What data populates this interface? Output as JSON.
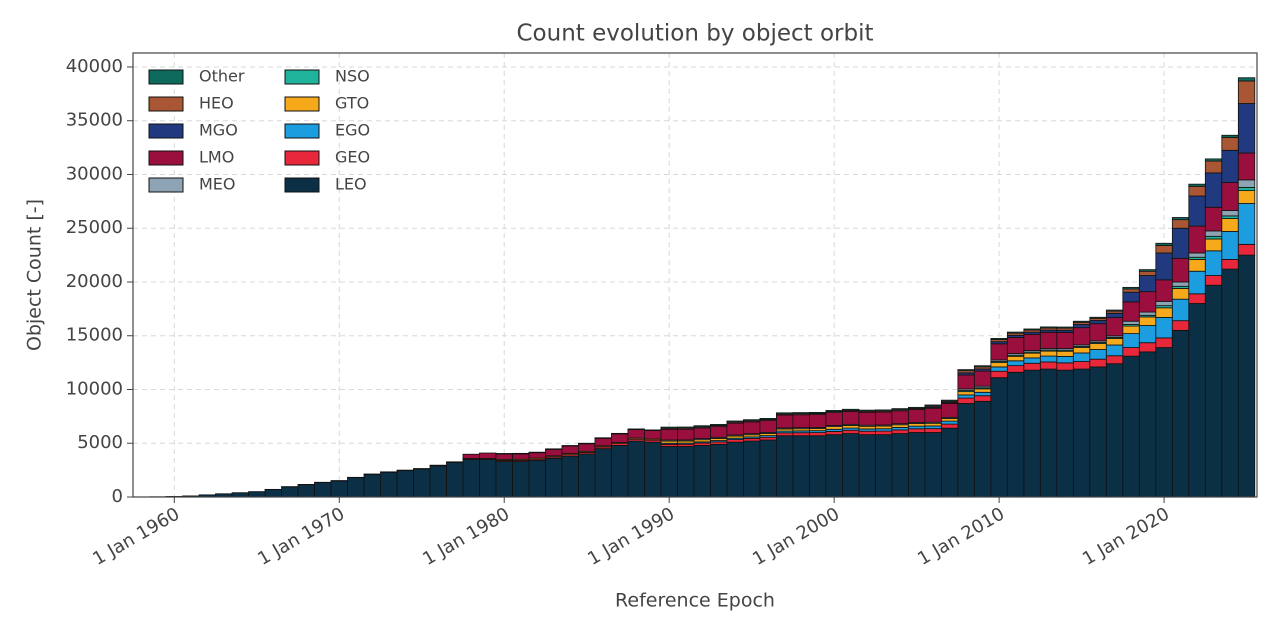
{
  "chart_data": {
    "type": "stacked_bar",
    "title": "Count evolution by object orbit",
    "xlabel": "Reference Epoch",
    "ylabel": "Object Count [-]",
    "x": [
      "1958-01-01",
      "1959-01-01",
      "1960-01-01",
      "1961-01-01",
      "1962-01-01",
      "1963-01-01",
      "1964-01-01",
      "1965-01-01",
      "1966-01-01",
      "1967-01-01",
      "1968-01-01",
      "1969-01-01",
      "1970-01-01",
      "1971-01-01",
      "1972-01-01",
      "1973-01-01",
      "1974-01-01",
      "1975-01-01",
      "1976-01-01",
      "1977-01-01",
      "1978-01-01",
      "1979-01-01",
      "1980-01-01",
      "1981-01-01",
      "1982-01-01",
      "1983-01-01",
      "1984-01-01",
      "1985-01-01",
      "1986-01-01",
      "1987-01-01",
      "1988-01-01",
      "1989-01-01",
      "1990-01-01",
      "1991-01-01",
      "1992-01-01",
      "1993-01-01",
      "1994-01-01",
      "1995-01-01",
      "1996-01-01",
      "1997-01-01",
      "1998-01-01",
      "1999-01-01",
      "2000-01-01",
      "2001-01-01",
      "2002-01-01",
      "2003-01-01",
      "2004-01-01",
      "2005-01-01",
      "2006-01-01",
      "2007-01-01",
      "2008-01-01",
      "2009-01-01",
      "2010-01-01",
      "2011-01-01",
      "2012-01-01",
      "2013-01-01",
      "2014-01-01",
      "2015-01-01",
      "2016-01-01",
      "2017-01-01",
      "2018-01-01",
      "2019-01-01",
      "2020-01-01",
      "2021-01-01",
      "2022-01-01",
      "2023-01-01",
      "2024-01-01",
      "2025-01-01"
    ],
    "series": [
      {
        "name": "LEO",
        "color": "#0b2f45",
        "values": [
          10,
          20,
          50,
          100,
          200,
          300,
          400,
          500,
          700,
          950,
          1150,
          1350,
          1500,
          1800,
          2100,
          2300,
          2450,
          2600,
          2900,
          3200,
          3500,
          3500,
          3300,
          3300,
          3400,
          3600,
          3800,
          4000,
          4500,
          4800,
          5200,
          5100,
          4700,
          4700,
          4800,
          4900,
          5100,
          5200,
          5300,
          5700,
          5700,
          5700,
          5800,
          5900,
          5800,
          5800,
          5900,
          6000,
          6000,
          6400,
          8700,
          8900,
          11100,
          11600,
          11800,
          11900,
          11800,
          11900,
          12100,
          12400,
          13100,
          13500,
          13900,
          15500,
          18000,
          19700,
          21200,
          22500
        ]
      },
      {
        "name": "GEO",
        "color": "#e8283a",
        "values": [
          0,
          0,
          0,
          0,
          0,
          0,
          0,
          0,
          10,
          10,
          20,
          20,
          30,
          30,
          40,
          40,
          50,
          50,
          60,
          70,
          80,
          90,
          100,
          110,
          120,
          130,
          140,
          150,
          160,
          170,
          180,
          190,
          200,
          210,
          220,
          230,
          240,
          250,
          260,
          270,
          280,
          290,
          300,
          310,
          320,
          330,
          340,
          350,
          360,
          380,
          500,
          520,
          600,
          620,
          640,
          660,
          680,
          700,
          720,
          740,
          800,
          850,
          900,
          900,
          900,
          900,
          900,
          1000
        ]
      },
      {
        "name": "EGO",
        "color": "#1b9de0",
        "values": [
          0,
          0,
          0,
          0,
          0,
          0,
          0,
          0,
          0,
          0,
          0,
          0,
          0,
          0,
          0,
          0,
          0,
          0,
          0,
          0,
          0,
          0,
          0,
          0,
          0,
          0,
          0,
          0,
          0,
          0,
          0,
          0,
          100,
          100,
          110,
          120,
          130,
          140,
          150,
          160,
          170,
          180,
          200,
          200,
          210,
          220,
          230,
          240,
          250,
          280,
          300,
          320,
          400,
          450,
          500,
          550,
          600,
          800,
          900,
          1000,
          1300,
          1600,
          1900,
          2000,
          2100,
          2300,
          2600,
          3800
        ]
      },
      {
        "name": "GTO",
        "color": "#f5a91b",
        "values": [
          0,
          0,
          0,
          0,
          0,
          0,
          0,
          0,
          0,
          0,
          0,
          0,
          0,
          0,
          0,
          0,
          0,
          0,
          0,
          0,
          0,
          0,
          100,
          100,
          100,
          100,
          100,
          100,
          100,
          100,
          100,
          100,
          200,
          200,
          200,
          200,
          200,
          200,
          200,
          200,
          200,
          200,
          250,
          250,
          250,
          250,
          250,
          250,
          250,
          250,
          300,
          320,
          400,
          420,
          440,
          460,
          480,
          500,
          550,
          600,
          700,
          800,
          900,
          1000,
          1100,
          1100,
          1200,
          1200
        ]
      },
      {
        "name": "NSO",
        "color": "#1fb39b",
        "values": [
          0,
          0,
          0,
          0,
          0,
          0,
          0,
          0,
          0,
          0,
          0,
          0,
          0,
          0,
          0,
          0,
          0,
          0,
          0,
          0,
          0,
          0,
          0,
          0,
          0,
          0,
          0,
          0,
          0,
          0,
          0,
          0,
          0,
          0,
          0,
          0,
          0,
          0,
          0,
          0,
          0,
          0,
          0,
          0,
          0,
          0,
          0,
          0,
          0,
          0,
          100,
          100,
          100,
          100,
          100,
          100,
          100,
          100,
          100,
          100,
          150,
          150,
          200,
          200,
          200,
          250,
          250,
          300
        ]
      },
      {
        "name": "MEO",
        "color": "#8ea3b3",
        "values": [
          0,
          0,
          0,
          0,
          0,
          0,
          0,
          0,
          0,
          0,
          0,
          0,
          0,
          0,
          0,
          0,
          0,
          0,
          0,
          0,
          0,
          0,
          0,
          0,
          0,
          0,
          0,
          0,
          0,
          0,
          0,
          0,
          100,
          100,
          100,
          100,
          100,
          100,
          100,
          100,
          100,
          100,
          100,
          100,
          100,
          100,
          100,
          100,
          100,
          100,
          150,
          150,
          150,
          150,
          150,
          150,
          150,
          150,
          150,
          150,
          300,
          300,
          400,
          400,
          400,
          500,
          500,
          700
        ]
      },
      {
        "name": "LMO",
        "color": "#9b0f3f",
        "values": [
          0,
          0,
          0,
          0,
          0,
          0,
          0,
          0,
          0,
          0,
          0,
          0,
          0,
          0,
          0,
          0,
          0,
          0,
          0,
          0,
          400,
          500,
          500,
          500,
          500,
          600,
          700,
          700,
          700,
          800,
          800,
          800,
          1000,
          1000,
          1000,
          1000,
          1100,
          1100,
          1100,
          1200,
          1200,
          1200,
          1200,
          1200,
          1200,
          1200,
          1200,
          1200,
          1300,
          1300,
          1300,
          1400,
          1500,
          1500,
          1500,
          1500,
          1500,
          1600,
          1600,
          1700,
          1800,
          1900,
          2000,
          2200,
          2500,
          2200,
          2600,
          2500
        ]
      },
      {
        "name": "MGO",
        "color": "#213a7f",
        "values": [
          0,
          0,
          0,
          0,
          0,
          0,
          0,
          0,
          0,
          0,
          0,
          0,
          0,
          0,
          0,
          0,
          0,
          0,
          0,
          0,
          0,
          0,
          0,
          0,
          0,
          0,
          0,
          0,
          0,
          0,
          0,
          0,
          0,
          0,
          0,
          0,
          0,
          0,
          0,
          0,
          0,
          0,
          0,
          0,
          0,
          0,
          0,
          0,
          100,
          100,
          200,
          200,
          200,
          200,
          200,
          200,
          200,
          300,
          300,
          400,
          900,
          1500,
          2500,
          2800,
          2800,
          3200,
          3000,
          4600
        ]
      },
      {
        "name": "HEO",
        "color": "#a95634",
        "values": [
          0,
          0,
          0,
          0,
          0,
          0,
          0,
          0,
          0,
          0,
          0,
          0,
          0,
          0,
          0,
          0,
          0,
          0,
          0,
          0,
          0,
          0,
          50,
          50,
          50,
          50,
          50,
          50,
          50,
          50,
          50,
          50,
          100,
          100,
          100,
          100,
          100,
          100,
          100,
          100,
          100,
          100,
          100,
          100,
          100,
          100,
          100,
          100,
          100,
          100,
          200,
          200,
          200,
          200,
          200,
          200,
          200,
          200,
          200,
          200,
          300,
          400,
          700,
          800,
          900,
          1100,
          1200,
          2100
        ]
      },
      {
        "name": "Other",
        "color": "#0f6a5e",
        "values": [
          0,
          0,
          0,
          0,
          0,
          0,
          0,
          0,
          0,
          0,
          0,
          0,
          0,
          0,
          0,
          0,
          0,
          0,
          0,
          0,
          0,
          0,
          0,
          0,
          0,
          0,
          0,
          0,
          0,
          0,
          0,
          0,
          100,
          100,
          100,
          100,
          100,
          100,
          100,
          100,
          100,
          100,
          100,
          100,
          100,
          100,
          100,
          100,
          100,
          100,
          100,
          100,
          100,
          100,
          100,
          100,
          100,
          100,
          100,
          100,
          150,
          150,
          200,
          200,
          200,
          200,
          200,
          300
        ]
      }
    ],
    "xlim": [
      "1957-07-01",
      "2025-08-20"
    ],
    "xticks": [
      {
        "value": "1960-01-01",
        "label": "1 Jan 1960"
      },
      {
        "value": "1970-01-01",
        "label": "1 Jan 1970"
      },
      {
        "value": "1980-01-01",
        "label": "1 Jan 1980"
      },
      {
        "value": "1990-01-01",
        "label": "1 Jan 1990"
      },
      {
        "value": "2000-01-01",
        "label": "1 Jan 2000"
      },
      {
        "value": "2010-01-01",
        "label": "1 Jan 2010"
      },
      {
        "value": "2020-01-01",
        "label": "1 Jan 2020"
      }
    ],
    "ylim": [
      0,
      41300
    ],
    "yticks": [
      0,
      5000,
      10000,
      15000,
      20000,
      25000,
      30000,
      35000,
      40000
    ],
    "grid": true,
    "legend": "upper left"
  }
}
